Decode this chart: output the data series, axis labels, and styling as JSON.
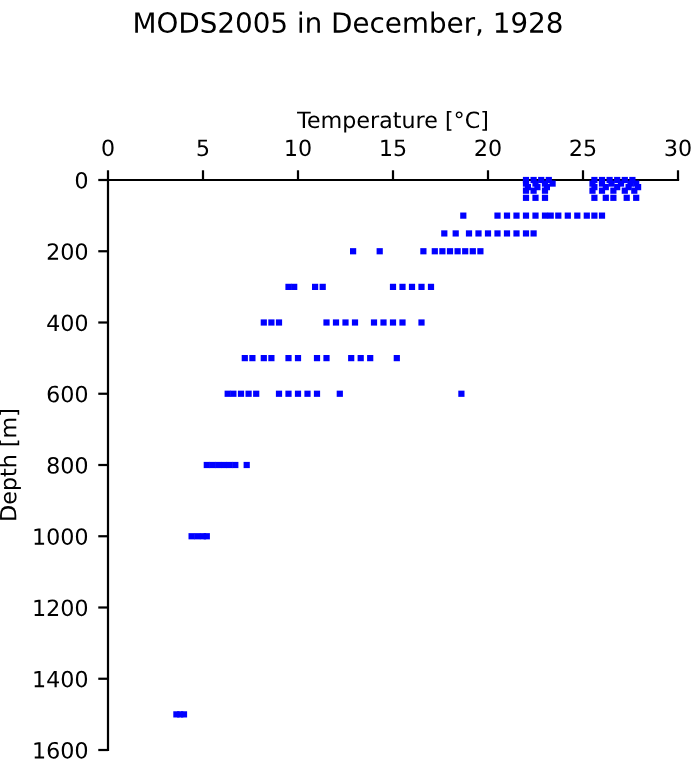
{
  "chart_data": {
    "type": "scatter",
    "title": "MODS2005 in December, 1928",
    "xlabel": "Temperature [°C]",
    "ylabel": "Depth [m]",
    "x": [
      22,
      22.4,
      22.8,
      23.2,
      25.6,
      26,
      26.4,
      26.8,
      27.2,
      27.6,
      22,
      22.5,
      23,
      23.4,
      25.5,
      26,
      26.5,
      27,
      27.5,
      27.8,
      22.1,
      22.6,
      23.1,
      25.6,
      26.2,
      26.8,
      27.4,
      27.9,
      22,
      22.4,
      23,
      25.5,
      26,
      26.6,
      27.2,
      27.7,
      22,
      22.5,
      23,
      25.6,
      26.2,
      26.6,
      27.3,
      27.8,
      18.7,
      20.5,
      21,
      21.5,
      22,
      22.5,
      23,
      23.3,
      23.7,
      24.2,
      24.7,
      25.2,
      25.6,
      26,
      17.7,
      18.3,
      19,
      19.5,
      20,
      20.5,
      21,
      21.5,
      22,
      22.4,
      12.9,
      14.3,
      16.6,
      17.2,
      17.6,
      18,
      18.4,
      18.8,
      19.2,
      19.6,
      9.5,
      9.8,
      10.9,
      11.3,
      15,
      15.5,
      16,
      16.5,
      17,
      8.2,
      8.6,
      9,
      11.5,
      12,
      12.5,
      13,
      14,
      14.5,
      15,
      15.5,
      16.5,
      7.2,
      7.6,
      8.2,
      8.6,
      9.5,
      10,
      11,
      11.5,
      12.8,
      13.3,
      13.8,
      15.2,
      6.3,
      6.6,
      7,
      7.4,
      7.8,
      9,
      9.5,
      10,
      10.5,
      11,
      12.2,
      18.6,
      5.2,
      5.5,
      5.8,
      6.1,
      6.4,
      6.7,
      7.3,
      4.4,
      4.7,
      5,
      5.2,
      3.6,
      3.8,
      4
    ],
    "values": [
      0,
      0,
      0,
      0,
      0,
      0,
      0,
      0,
      0,
      0,
      10,
      10,
      10,
      10,
      10,
      10,
      10,
      10,
      10,
      10,
      20,
      20,
      20,
      20,
      20,
      20,
      20,
      20,
      30,
      30,
      30,
      30,
      30,
      30,
      30,
      30,
      50,
      50,
      50,
      50,
      50,
      50,
      50,
      50,
      100,
      100,
      100,
      100,
      100,
      100,
      100,
      100,
      100,
      100,
      100,
      100,
      100,
      100,
      150,
      150,
      150,
      150,
      150,
      150,
      150,
      150,
      150,
      150,
      200,
      200,
      200,
      200,
      200,
      200,
      200,
      200,
      200,
      200,
      300,
      300,
      300,
      300,
      300,
      300,
      300,
      300,
      300,
      400,
      400,
      400,
      400,
      400,
      400,
      400,
      400,
      400,
      400,
      400,
      400,
      500,
      500,
      500,
      500,
      500,
      500,
      500,
      500,
      500,
      500,
      500,
      500,
      600,
      600,
      600,
      600,
      600,
      600,
      600,
      600,
      600,
      600,
      600,
      600,
      800,
      800,
      800,
      800,
      800,
      800,
      800,
      1000,
      1000,
      1000,
      1000,
      1500,
      1500,
      1500
    ],
    "color": "#0000ff",
    "marker": "square",
    "grid": false,
    "xlim": [
      0,
      30
    ],
    "xticks": [
      0,
      5,
      10,
      15,
      20,
      25,
      30
    ],
    "ylim": [
      1600,
      0
    ],
    "yticks": [
      0,
      200,
      400,
      600,
      800,
      1000,
      1200,
      1400,
      1600
    ]
  }
}
